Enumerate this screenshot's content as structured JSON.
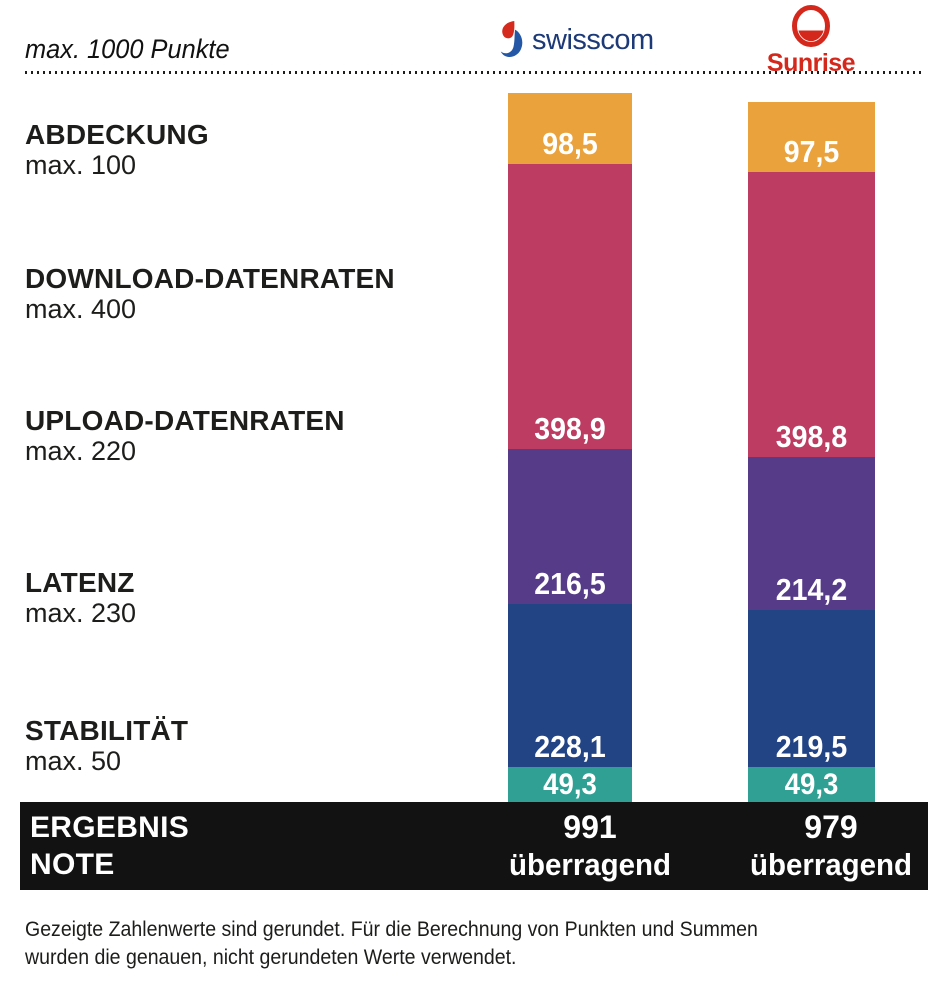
{
  "header": {
    "max_label": "max. 1000 Punkte",
    "operators": [
      {
        "name": "Swisscom",
        "wordmark": "swisscom"
      },
      {
        "name": "Sunrise",
        "wordmark": "Sunrise"
      }
    ]
  },
  "categories": [
    {
      "label": "ABDECKUNG",
      "max": "max. 100"
    },
    {
      "label": "DOWNLOAD-DATENRATEN",
      "max": "max. 400"
    },
    {
      "label": "UPLOAD-DATENRATEN",
      "max": "max. 220"
    },
    {
      "label": "LATENZ",
      "max": "max. 230"
    },
    {
      "label": "STABILITÄT",
      "max": "max. 50"
    }
  ],
  "result_band": {
    "row1_label": "ERGEBNIS",
    "row2_label": "NOTE",
    "results": [
      {
        "score": "991",
        "grade": "überragend"
      },
      {
        "score": "979",
        "grade": "überragend"
      }
    ]
  },
  "footnote": {
    "line1": "Gezeigte Zahlenwerte sind gerundet. Für die Berechnung von Punkten und Summen",
    "line2": "wurden die genauen, nicht gerundeten Werte verwendet."
  },
  "colors": {
    "abdeckung": "#eaa23c",
    "download": "#bc3c62",
    "upload": "#563c88",
    "latenz": "#234484",
    "stabilitaet": "#2fa093",
    "band": "#121212",
    "swisscom_navy": "#1d3a78",
    "swisscom_red": "#d52b1e",
    "swisscom_blue": "#2458a6",
    "sunrise_red": "#d5281c"
  },
  "chart_data": {
    "type": "bar",
    "stacked": true,
    "title": "max. 1000 Punkte",
    "max_total": 1000,
    "legend_position": "left",
    "grid": false,
    "categories": [
      "ABDECKUNG",
      "DOWNLOAD-DATENRATEN",
      "UPLOAD-DATENRATEN",
      "LATENZ",
      "STABILITÄT"
    ],
    "category_max": [
      100,
      400,
      220,
      230,
      50
    ],
    "segment_colors": [
      "#eaa23c",
      "#bc3c62",
      "#563c88",
      "#234484",
      "#2fa093"
    ],
    "series": [
      {
        "name": "Swisscom",
        "values": [
          98.5,
          398.9,
          216.5,
          228.1,
          49.3
        ],
        "value_labels": [
          "98,5",
          "398,9",
          "216,5",
          "228,1",
          "49,3"
        ],
        "total": 991,
        "grade": "überragend"
      },
      {
        "name": "Sunrise",
        "values": [
          97.5,
          398.8,
          214.2,
          219.5,
          49.3
        ],
        "value_labels": [
          "97,5",
          "398,8",
          "214,2",
          "219,5",
          "49,3"
        ],
        "total": 979,
        "grade": "überragend"
      }
    ]
  }
}
